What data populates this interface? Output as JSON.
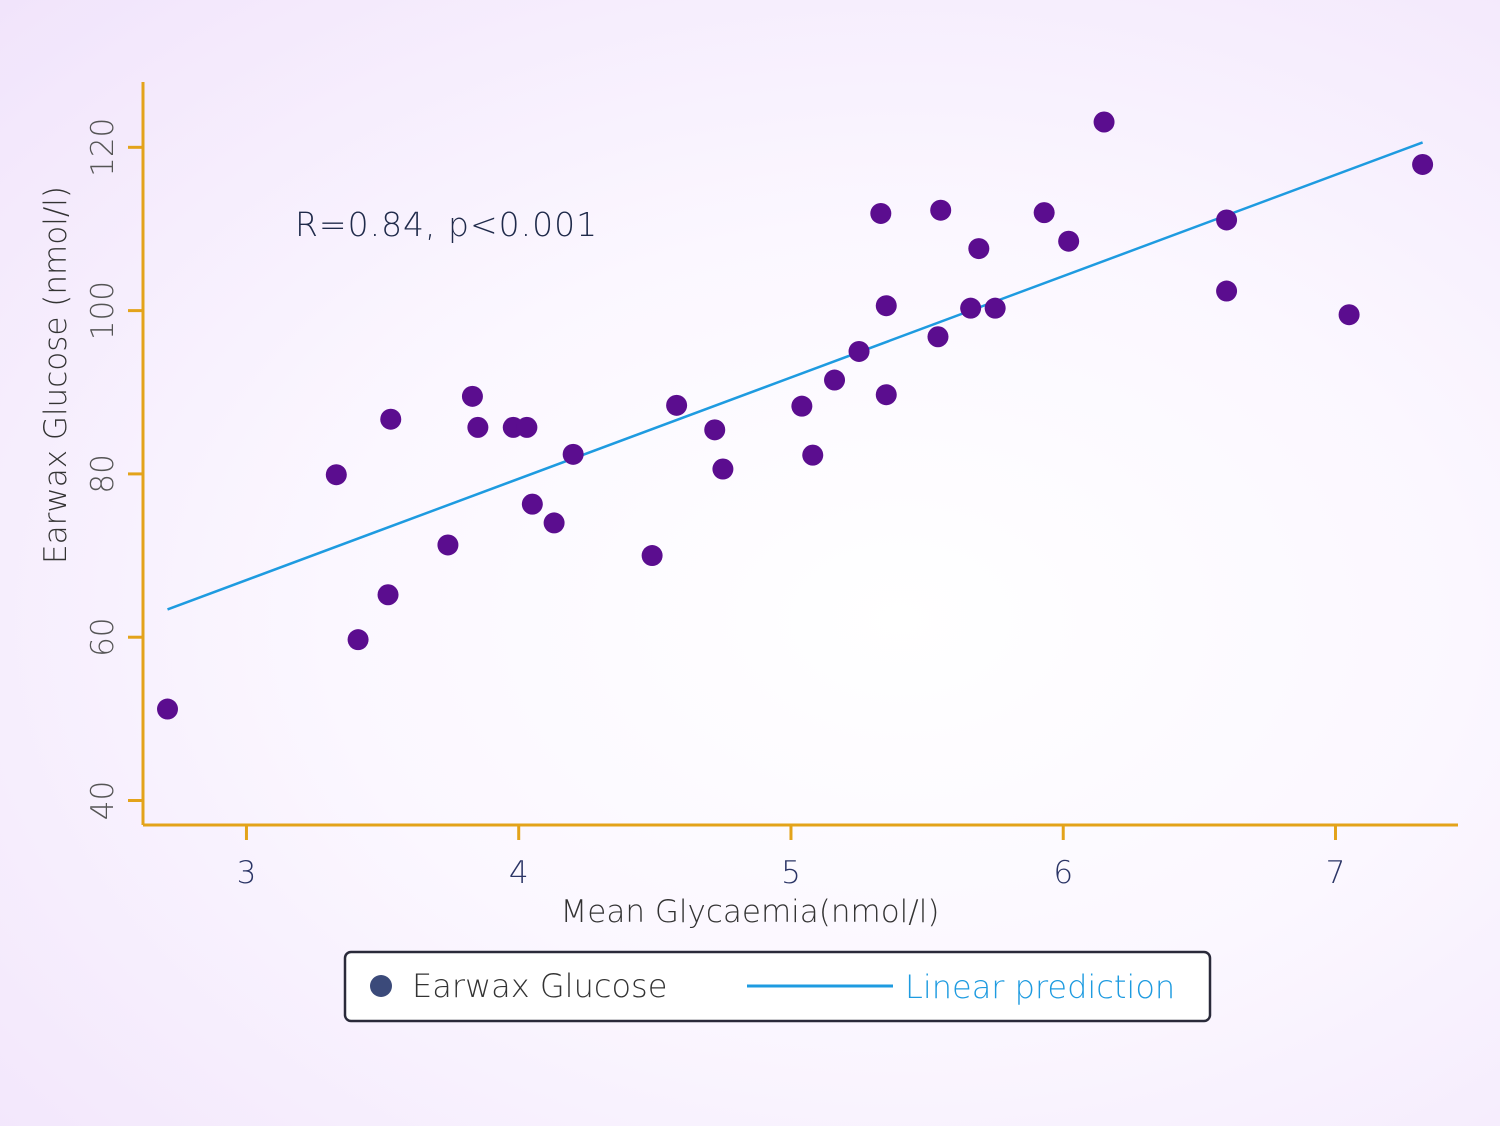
{
  "chart_data": {
    "type": "scatter",
    "xlabel": "Mean Glycaemia(nmol/l)",
    "ylabel": "Earwax Glucose (nmol/l)",
    "xlim": [
      2.62,
      7.45
    ],
    "ylim": [
      37,
      128
    ],
    "x_ticks": [
      "3",
      "4",
      "5",
      "6",
      "7"
    ],
    "y_ticks": [
      "40",
      "60",
      "80",
      "100",
      "120"
    ],
    "annotation": "R=0.84, p<0.001",
    "grid": false,
    "legend_position": "bottom",
    "series": [
      {
        "name": "Earwax Glucose",
        "kind": "scatter",
        "color": "#5b0d8f",
        "points": [
          [
            2.71,
            51.2
          ],
          [
            3.33,
            79.9
          ],
          [
            3.41,
            59.7
          ],
          [
            3.52,
            65.2
          ],
          [
            3.53,
            86.7
          ],
          [
            3.74,
            71.3
          ],
          [
            3.83,
            89.5
          ],
          [
            3.85,
            85.7
          ],
          [
            3.98,
            85.7
          ],
          [
            4.03,
            85.7
          ],
          [
            4.05,
            76.3
          ],
          [
            4.13,
            74.0
          ],
          [
            4.2,
            82.4
          ],
          [
            4.49,
            70.0
          ],
          [
            4.58,
            88.4
          ],
          [
            4.72,
            85.4
          ],
          [
            4.75,
            80.6
          ],
          [
            5.04,
            88.3
          ],
          [
            5.08,
            82.3
          ],
          [
            5.16,
            91.5
          ],
          [
            5.25,
            95.0
          ],
          [
            5.33,
            111.9
          ],
          [
            5.35,
            100.6
          ],
          [
            5.35,
            89.7
          ],
          [
            5.54,
            96.8
          ],
          [
            5.55,
            112.3
          ],
          [
            5.66,
            100.3
          ],
          [
            5.69,
            107.6
          ],
          [
            5.75,
            100.3
          ],
          [
            5.93,
            112.0
          ],
          [
            6.02,
            108.5
          ],
          [
            6.15,
            123.1
          ],
          [
            6.6,
            111.1
          ],
          [
            6.6,
            102.4
          ],
          [
            7.05,
            99.5
          ],
          [
            7.32,
            117.9
          ]
        ]
      },
      {
        "name": "Linear prediction",
        "kind": "line",
        "color": "#1e9be0",
        "x": [
          2.71,
          7.32
        ],
        "y": [
          63.4,
          120.6
        ]
      }
    ]
  },
  "legend": {
    "marker_color": "#3b4a7a",
    "scatter_label": "Earwax Glucose",
    "line_label": "Linear prediction",
    "line_label_color": "#1e9be0"
  },
  "colors": {
    "axis": "#e3a31a",
    "x_tick_text": "#2b3566",
    "y_tick_text": "#555555"
  }
}
